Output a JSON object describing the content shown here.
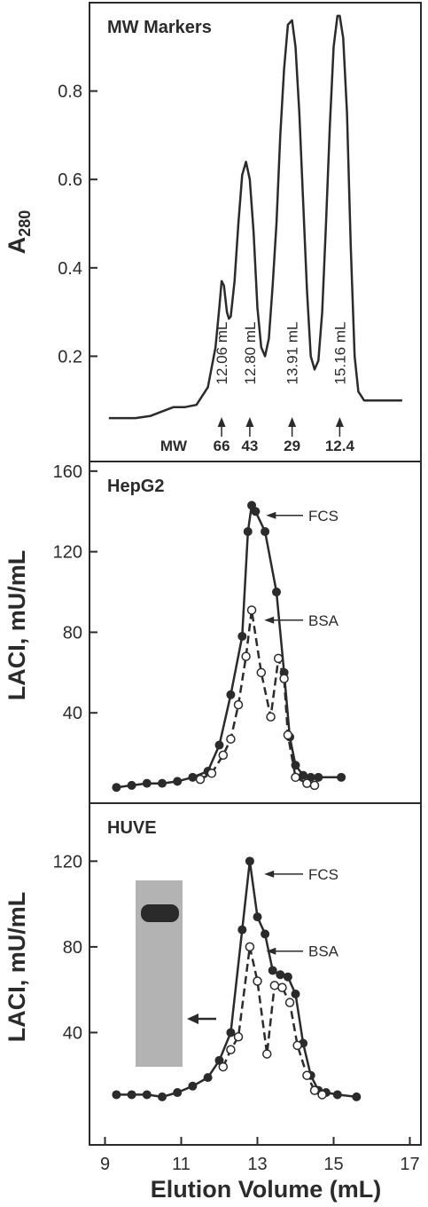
{
  "figure": {
    "xlabel": "Elution Volume (mL)",
    "x_ticks": [
      "9",
      "11",
      "13",
      "15",
      "17"
    ],
    "colors": {
      "ink": "#2b2b2b",
      "open_fill": "#ffffff",
      "gel_bg": "#b3b3b3",
      "gel_band": "#2a2a2a"
    }
  },
  "chart_data": [
    {
      "type": "line",
      "title": "MW Markers",
      "ylabel": "A",
      "ylabel_sub": "280",
      "xlim": [
        9,
        17
      ],
      "ylim": [
        0,
        1.0
      ],
      "y_ticks": [
        "0.2",
        "0.4",
        "0.6",
        "0.8"
      ],
      "series": [
        {
          "x": [
            9.1,
            9.8,
            10.2,
            10.5,
            10.8,
            11.1,
            11.4,
            11.7,
            11.9,
            12.0,
            12.06,
            12.12,
            12.2,
            12.25,
            12.3,
            12.4,
            12.5,
            12.6,
            12.7,
            12.8,
            12.9,
            13.0,
            13.1,
            13.2,
            13.3,
            13.4,
            13.5,
            13.6,
            13.7,
            13.8,
            13.91,
            14.0,
            14.1,
            14.2,
            14.3,
            14.4,
            14.5,
            14.6,
            14.7,
            14.8,
            14.9,
            15.0,
            15.1,
            15.16,
            15.25,
            15.35,
            15.45,
            15.55,
            15.65,
            15.8,
            16.0,
            16.2,
            16.4,
            16.8
          ],
          "y": [
            0.06,
            0.06,
            0.065,
            0.075,
            0.085,
            0.085,
            0.09,
            0.13,
            0.22,
            0.31,
            0.37,
            0.36,
            0.3,
            0.285,
            0.29,
            0.37,
            0.5,
            0.61,
            0.64,
            0.6,
            0.48,
            0.31,
            0.22,
            0.2,
            0.24,
            0.36,
            0.5,
            0.7,
            0.85,
            0.95,
            0.96,
            0.9,
            0.75,
            0.55,
            0.35,
            0.2,
            0.17,
            0.19,
            0.3,
            0.5,
            0.72,
            0.9,
            0.97,
            0.97,
            0.92,
            0.75,
            0.45,
            0.2,
            0.12,
            0.1,
            0.1,
            0.1,
            0.1,
            0.1
          ]
        }
      ],
      "annotations": {
        "peaks": [
          {
            "x": 12.06,
            "label": "12.06 mL",
            "mw": "66"
          },
          {
            "x": 12.8,
            "label": "12.80 mL",
            "mw": "43"
          },
          {
            "x": 13.91,
            "label": "13.91 mL",
            "mw": "29"
          },
          {
            "x": 15.16,
            "label": "15.16 mL",
            "mw": "12.4"
          }
        ],
        "mw_label": "MW"
      }
    },
    {
      "type": "line",
      "title": "HepG2",
      "ylabel": "LACI, mU/mL",
      "xlim": [
        9,
        17
      ],
      "ylim": [
        0,
        165
      ],
      "y_ticks": [
        "40",
        "80",
        "120",
        "160"
      ],
      "series": [
        {
          "name": "FCS",
          "style": "solid-filled",
          "points": [
            [
              9.3,
              3
            ],
            [
              9.7,
              4
            ],
            [
              10.1,
              5
            ],
            [
              10.5,
              5
            ],
            [
              10.9,
              6
            ],
            [
              11.3,
              8
            ],
            [
              11.7,
              11
            ],
            [
              12.0,
              24
            ],
            [
              12.3,
              49
            ],
            [
              12.6,
              78
            ],
            [
              12.75,
              130
            ],
            [
              12.85,
              143
            ],
            [
              12.95,
              140
            ],
            [
              13.2,
              130
            ],
            [
              13.5,
              100
            ],
            [
              13.7,
              60
            ],
            [
              13.85,
              28
            ],
            [
              14.0,
              14
            ],
            [
              14.2,
              9
            ],
            [
              14.4,
              8
            ],
            [
              14.6,
              8
            ],
            [
              15.2,
              8
            ]
          ],
          "label": "FCS",
          "label_point": [
            12.95,
            138
          ]
        },
        {
          "name": "BSA",
          "style": "dashed-open",
          "points": [
            [
              11.5,
              7
            ],
            [
              11.8,
              10
            ],
            [
              12.1,
              19
            ],
            [
              12.3,
              27
            ],
            [
              12.5,
              44
            ],
            [
              12.7,
              68
            ],
            [
              12.85,
              91
            ],
            [
              13.1,
              60
            ],
            [
              13.35,
              38
            ],
            [
              13.55,
              67
            ],
            [
              13.7,
              57
            ],
            [
              13.8,
              29
            ],
            [
              14.0,
              8
            ],
            [
              14.3,
              5
            ],
            [
              14.5,
              4
            ]
          ],
          "label": "BSA",
          "label_point": [
            12.9,
            86
          ]
        }
      ]
    },
    {
      "type": "line",
      "title": "HUVE",
      "ylabel": "LACI, mU/mL",
      "xlim": [
        9,
        17
      ],
      "ylim": [
        0,
        145
      ],
      "y_ticks": [
        "40",
        "80",
        "120"
      ],
      "series": [
        {
          "name": "FCS",
          "style": "solid-filled",
          "points": [
            [
              9.3,
              11
            ],
            [
              9.7,
              11
            ],
            [
              10.1,
              11
            ],
            [
              10.5,
              10
            ],
            [
              10.9,
              12
            ],
            [
              11.3,
              15
            ],
            [
              11.7,
              19
            ],
            [
              12.0,
              27
            ],
            [
              12.3,
              40
            ],
            [
              12.6,
              88
            ],
            [
              12.8,
              120
            ],
            [
              13.0,
              94
            ],
            [
              13.2,
              86
            ],
            [
              13.4,
              69
            ],
            [
              13.6,
              67
            ],
            [
              13.8,
              66
            ],
            [
              14.0,
              58
            ],
            [
              14.2,
              35
            ],
            [
              14.4,
              20
            ],
            [
              14.6,
              13
            ],
            [
              14.8,
              12
            ],
            [
              15.1,
              11
            ],
            [
              15.6,
              10
            ]
          ],
          "label": "FCS",
          "label_point": [
            12.9,
            114
          ]
        },
        {
          "name": "BSA",
          "style": "dashed-open",
          "points": [
            [
              12.1,
              24
            ],
            [
              12.3,
              32
            ],
            [
              12.5,
              38
            ],
            [
              12.8,
              80
            ],
            [
              13.0,
              64
            ],
            [
              13.25,
              30
            ],
            [
              13.45,
              62
            ],
            [
              13.65,
              61
            ],
            [
              13.85,
              54
            ],
            [
              14.05,
              34
            ],
            [
              14.3,
              20
            ],
            [
              14.5,
              13
            ],
            [
              14.7,
              11
            ]
          ],
          "label": "BSA",
          "label_point": [
            12.95,
            78
          ]
        }
      ]
    }
  ]
}
